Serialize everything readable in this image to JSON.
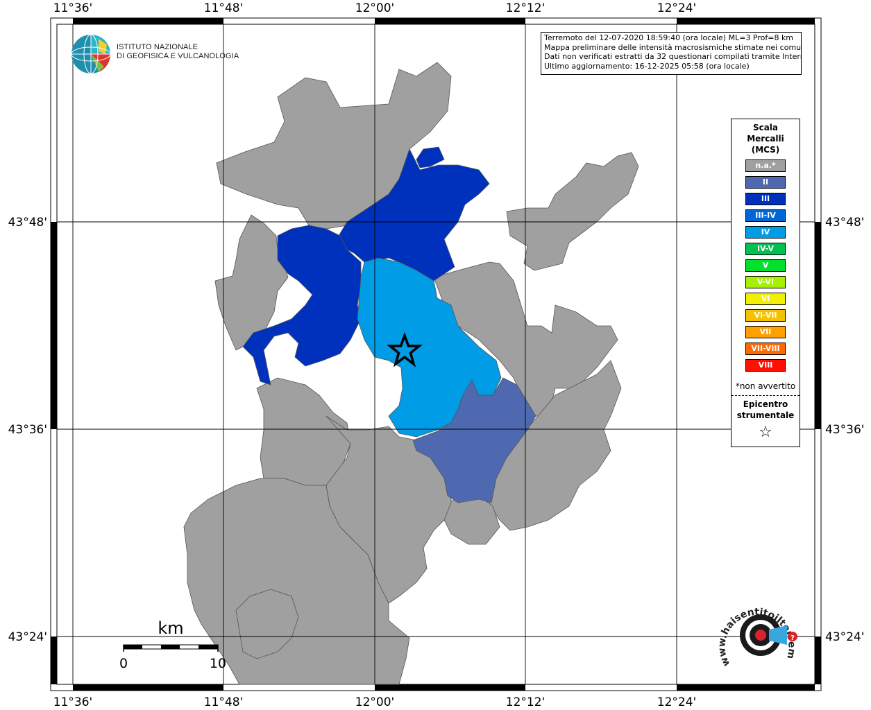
{
  "map": {
    "info_lines": [
      "Terremoto del 12-07-2020 18:59:40 (ora locale) ML=3 Prof=8 km",
      "Mappa preliminare delle intensità macrosismiche stimate nei comuni",
      "Dati non verificati estratti da 32 questionari compilati tramite Internet.",
      "Ultimo aggiornamento: 16-12-2025 05:58 (ora locale)"
    ],
    "longitude_labels": [
      "11°36'",
      "11°48'",
      "12°00'",
      "12°12'",
      "12°24'"
    ],
    "latitude_labels": [
      "43°48'",
      "43°36'",
      "43°24'"
    ],
    "scale_bar": {
      "unit": "km",
      "min_label": "0",
      "max_label": "10"
    },
    "epicenter": {
      "symbol": "star"
    },
    "logo_ingv": {
      "line1": "ISTITUTO NAZIONALE",
      "line2": "DI GEOFISICA E VULCANOLOGIA"
    },
    "logo_hsit": {
      "text": "www.haisentitoilterremoto.it"
    }
  },
  "legend": {
    "title_lines": [
      "Scala",
      "Mercalli",
      "(MCS)"
    ],
    "items": [
      {
        "label": "n.a.*",
        "color": "#a0a0a0"
      },
      {
        "label": "II",
        "color": "#4f69b0"
      },
      {
        "label": "III",
        "color": "#0031bd"
      },
      {
        "label": "III-IV",
        "color": "#0065d6"
      },
      {
        "label": "IV",
        "color": "#009ce6"
      },
      {
        "label": "IV-V",
        "color": "#00c050"
      },
      {
        "label": "V",
        "color": "#00e02c"
      },
      {
        "label": "V-VI",
        "color": "#a6f000"
      },
      {
        "label": "VI",
        "color": "#f0f000"
      },
      {
        "label": "VI-VII",
        "color": "#f6c200"
      },
      {
        "label": "VII",
        "color": "#ffa000"
      },
      {
        "label": "VII-VIII",
        "color": "#ff6a00"
      },
      {
        "label": "VIII",
        "color": "#ff1000"
      }
    ],
    "note": "*non avvertito",
    "epicenter_lines": [
      "Epicentro",
      "strumentale"
    ],
    "epicenter_symbol": "☆"
  }
}
